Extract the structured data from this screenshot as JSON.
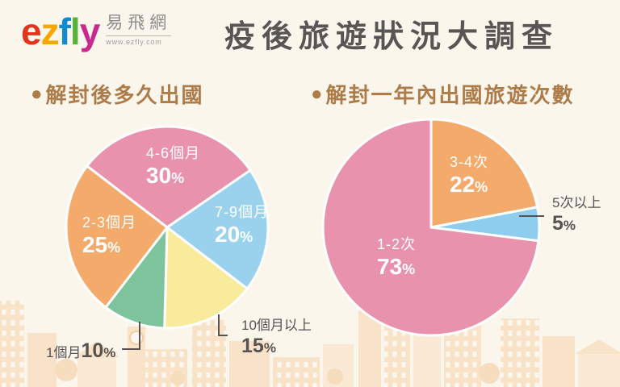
{
  "bullet": "●",
  "percent_sign": "%",
  "logo": {
    "letters": [
      {
        "char": "e",
        "color": "#e3331c"
      },
      {
        "char": "z",
        "color": "#f9a700"
      },
      {
        "char": "f",
        "color": "#128ace"
      },
      {
        "char": "l",
        "color": "#54b53a"
      },
      {
        "char": "y",
        "color": "#c9288f"
      }
    ],
    "cjk": "易飛網",
    "url": "www.ezfly.com"
  },
  "header": {
    "title": "疫後旅遊狀況大調查"
  },
  "colors": {
    "background": "#fbf6ec",
    "title_text": "#595555",
    "heading_text": "#ad7c49",
    "inside_label_text": "#ffffff",
    "outside_label_text": "#575353",
    "slice_separator": "#ffffff",
    "skyline": "#f8e3c9"
  },
  "chart_data": [
    {
      "type": "pie",
      "title": "解封後多久出國",
      "labels": [
        "4-6個月",
        "7-9個月",
        "10個月以上",
        "1個月",
        "2-3個月"
      ],
      "values": [
        30,
        20,
        15,
        10,
        25
      ],
      "colors": [
        "#e992ae",
        "#9ad2ee",
        "#f8eb9b",
        "#7dc49c",
        "#f3aa6a"
      ],
      "unit": "%",
      "start_angle_deg": -52.5,
      "direction": "clockwise",
      "label_placement": [
        "inside",
        "inside",
        "outside",
        "outside",
        "inside"
      ]
    },
    {
      "type": "pie",
      "title": "解封一年內出國旅遊次數",
      "labels": [
        "3-4次",
        "5次以上",
        "1-2次"
      ],
      "values": [
        22,
        5,
        73
      ],
      "colors": [
        "#f3aa6a",
        "#8fcdee",
        "#e992ae"
      ],
      "unit": "%",
      "start_angle_deg": 0,
      "direction": "clockwise",
      "label_placement": [
        "inside",
        "outside",
        "inside"
      ]
    }
  ]
}
